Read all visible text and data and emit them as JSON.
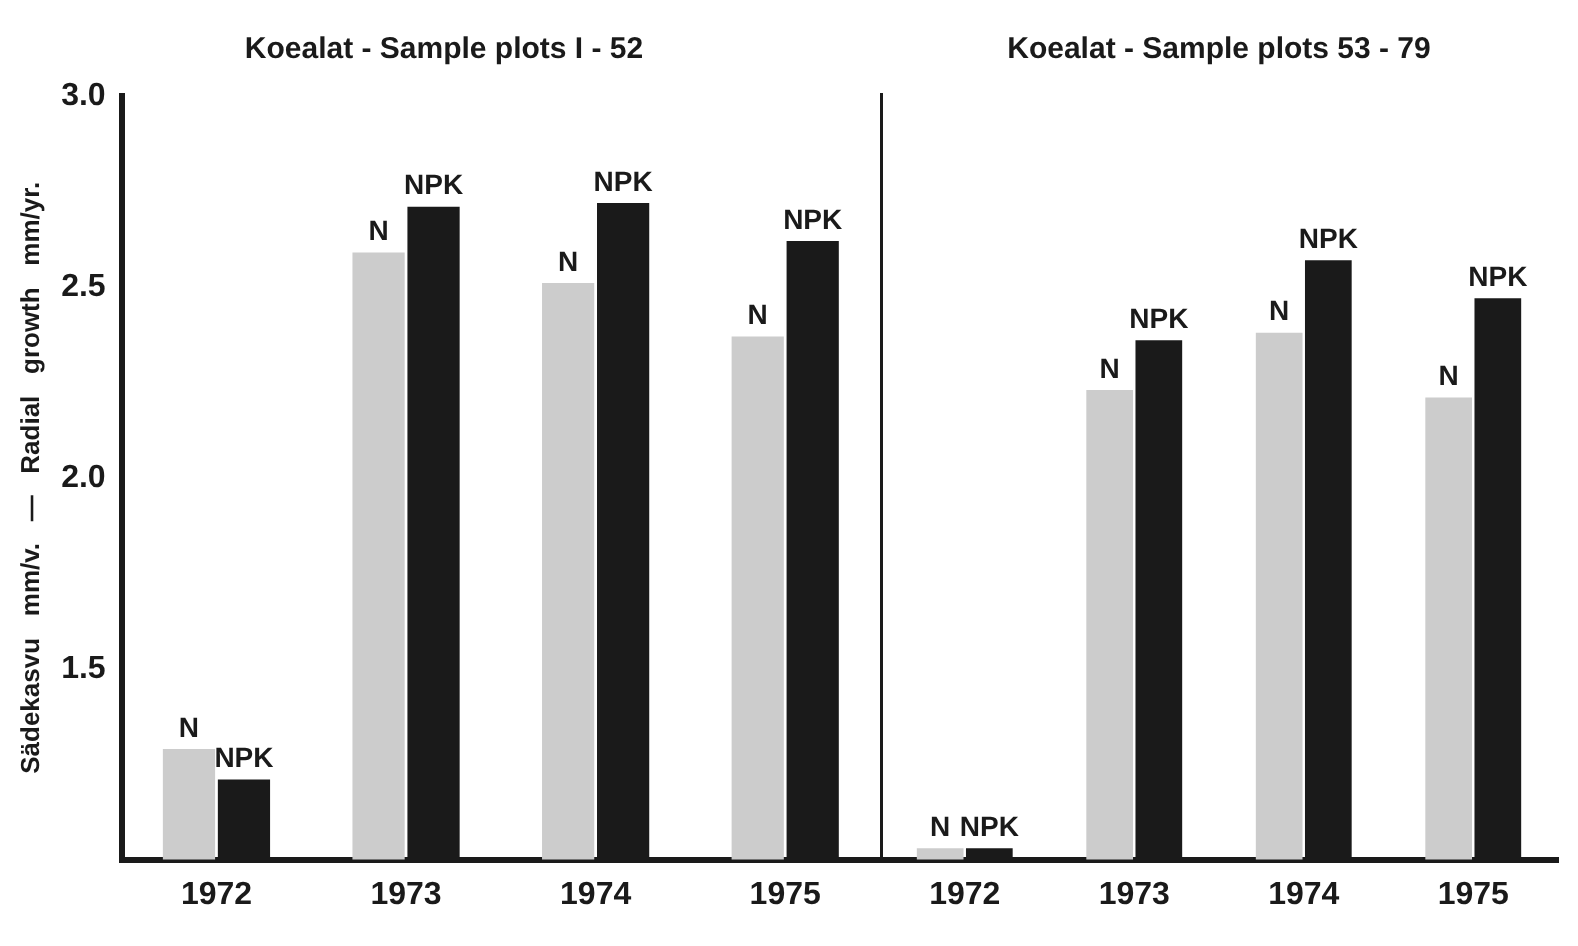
{
  "chart_data": [
    {
      "type": "bar",
      "title": "Koealat - Sample plots I - 52",
      "ylabel": "Sädekasvu   mm/v.   —   Radial   growth   mm/yr.",
      "categories": [
        "1972",
        "1973",
        "1974",
        "1975"
      ],
      "series": [
        {
          "name": "N",
          "color": "#cccccc",
          "values": [
            1.29,
            2.59,
            2.51,
            2.37
          ]
        },
        {
          "name": "NPK",
          "color": "#1a1a1a",
          "values": [
            1.21,
            2.71,
            2.72,
            2.62
          ]
        }
      ],
      "ylim": [
        1.0,
        3.0
      ],
      "yticks": [
        {
          "value": 1.5,
          "label": "1.5"
        },
        {
          "value": 2.0,
          "label": "2.0"
        },
        {
          "value": 2.5,
          "label": "2.5"
        },
        {
          "value": 3.0,
          "label": "3.0"
        }
      ],
      "grid": false,
      "legend": false
    },
    {
      "type": "bar",
      "title": "Koealat - Sample plots 53 - 79",
      "categories": [
        "1972",
        "1973",
        "1974",
        "1975"
      ],
      "series": [
        {
          "name": "N",
          "color": "#cccccc",
          "values": [
            1.03,
            2.23,
            2.38,
            2.21
          ]
        },
        {
          "name": "NPK",
          "color": "#1a1a1a",
          "values": [
            1.03,
            2.36,
            2.57,
            2.47
          ]
        }
      ],
      "ylim": [
        1.0,
        3.0
      ],
      "tick_labels": "x",
      "grid": false,
      "legend": false
    }
  ]
}
